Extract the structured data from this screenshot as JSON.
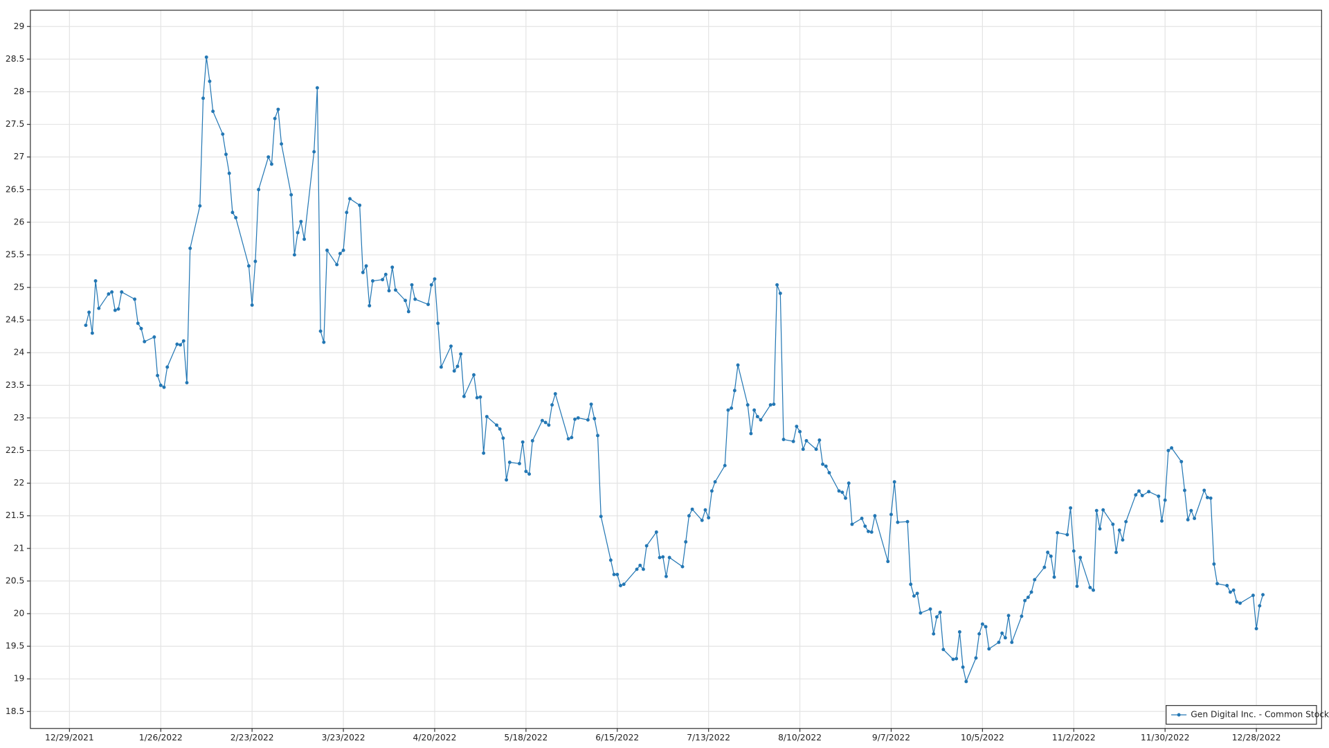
{
  "chart_data": {
    "type": "line",
    "x": [
      "2022-01-03",
      "2022-01-04",
      "2022-01-05",
      "2022-01-06",
      "2022-01-07",
      "2022-01-10",
      "2022-01-11",
      "2022-01-12",
      "2022-01-13",
      "2022-01-14",
      "2022-01-18",
      "2022-01-19",
      "2022-01-20",
      "2022-01-21",
      "2022-01-24",
      "2022-01-25",
      "2022-01-26",
      "2022-01-27",
      "2022-01-28",
      "2022-01-31",
      "2022-02-01",
      "2022-02-02",
      "2022-02-03",
      "2022-02-04",
      "2022-02-07",
      "2022-02-08",
      "2022-02-09",
      "2022-02-10",
      "2022-02-11",
      "2022-02-14",
      "2022-02-15",
      "2022-02-16",
      "2022-02-17",
      "2022-02-18",
      "2022-02-22",
      "2022-02-23",
      "2022-02-24",
      "2022-02-25",
      "2022-02-28",
      "2022-03-01",
      "2022-03-02",
      "2022-03-03",
      "2022-03-04",
      "2022-03-07",
      "2022-03-08",
      "2022-03-09",
      "2022-03-10",
      "2022-03-11",
      "2022-03-14",
      "2022-03-15",
      "2022-03-16",
      "2022-03-17",
      "2022-03-18",
      "2022-03-21",
      "2022-03-22",
      "2022-03-23",
      "2022-03-24",
      "2022-03-25",
      "2022-03-28",
      "2022-03-29",
      "2022-03-30",
      "2022-03-31",
      "2022-04-01",
      "2022-04-04",
      "2022-04-05",
      "2022-04-06",
      "2022-04-07",
      "2022-04-08",
      "2022-04-11",
      "2022-04-12",
      "2022-04-13",
      "2022-04-14",
      "2022-04-18",
      "2022-04-19",
      "2022-04-20",
      "2022-04-21",
      "2022-04-22",
      "2022-04-25",
      "2022-04-26",
      "2022-04-27",
      "2022-04-28",
      "2022-04-29",
      "2022-05-02",
      "2022-05-03",
      "2022-05-04",
      "2022-05-05",
      "2022-05-06",
      "2022-05-09",
      "2022-05-10",
      "2022-05-11",
      "2022-05-12",
      "2022-05-13",
      "2022-05-16",
      "2022-05-17",
      "2022-05-18",
      "2022-05-19",
      "2022-05-20",
      "2022-05-23",
      "2022-05-24",
      "2022-05-25",
      "2022-05-26",
      "2022-05-27",
      "2022-05-31",
      "2022-06-01",
      "2022-06-02",
      "2022-06-03",
      "2022-06-06",
      "2022-06-07",
      "2022-06-08",
      "2022-06-09",
      "2022-06-10",
      "2022-06-13",
      "2022-06-14",
      "2022-06-15",
      "2022-06-16",
      "2022-06-17",
      "2022-06-21",
      "2022-06-22",
      "2022-06-23",
      "2022-06-24",
      "2022-06-27",
      "2022-06-28",
      "2022-06-29",
      "2022-06-30",
      "2022-07-01",
      "2022-07-05",
      "2022-07-06",
      "2022-07-07",
      "2022-07-08",
      "2022-07-11",
      "2022-07-12",
      "2022-07-13",
      "2022-07-14",
      "2022-07-15",
      "2022-07-18",
      "2022-07-19",
      "2022-07-20",
      "2022-07-21",
      "2022-07-22",
      "2022-07-25",
      "2022-07-26",
      "2022-07-27",
      "2022-07-28",
      "2022-07-29",
      "2022-08-01",
      "2022-08-02",
      "2022-08-03",
      "2022-08-04",
      "2022-08-05",
      "2022-08-08",
      "2022-08-09",
      "2022-08-10",
      "2022-08-11",
      "2022-08-12",
      "2022-08-15",
      "2022-08-16",
      "2022-08-17",
      "2022-08-18",
      "2022-08-19",
      "2022-08-22",
      "2022-08-23",
      "2022-08-24",
      "2022-08-25",
      "2022-08-26",
      "2022-08-29",
      "2022-08-30",
      "2022-08-31",
      "2022-09-01",
      "2022-09-02",
      "2022-09-06",
      "2022-09-07",
      "2022-09-08",
      "2022-09-09",
      "2022-09-12",
      "2022-09-13",
      "2022-09-14",
      "2022-09-15",
      "2022-09-16",
      "2022-09-19",
      "2022-09-20",
      "2022-09-21",
      "2022-09-22",
      "2022-09-23",
      "2022-09-26",
      "2022-09-27",
      "2022-09-28",
      "2022-09-29",
      "2022-09-30",
      "2022-10-03",
      "2022-10-04",
      "2022-10-05",
      "2022-10-06",
      "2022-10-07",
      "2022-10-10",
      "2022-10-11",
      "2022-10-12",
      "2022-10-13",
      "2022-10-14",
      "2022-10-17",
      "2022-10-18",
      "2022-10-19",
      "2022-10-20",
      "2022-10-21",
      "2022-10-24",
      "2022-10-25",
      "2022-10-26",
      "2022-10-27",
      "2022-10-28",
      "2022-10-31",
      "2022-11-01",
      "2022-11-02",
      "2022-11-03",
      "2022-11-04",
      "2022-11-07",
      "2022-11-08",
      "2022-11-09",
      "2022-11-10",
      "2022-11-11",
      "2022-11-14",
      "2022-11-15",
      "2022-11-16",
      "2022-11-17",
      "2022-11-18",
      "2022-11-21",
      "2022-11-22",
      "2022-11-23",
      "2022-11-25",
      "2022-11-28",
      "2022-11-29",
      "2022-11-30",
      "2022-12-01",
      "2022-12-02",
      "2022-12-05",
      "2022-12-06",
      "2022-12-07",
      "2022-12-08",
      "2022-12-09",
      "2022-12-12",
      "2022-12-13",
      "2022-12-14",
      "2022-12-15",
      "2022-12-16",
      "2022-12-19",
      "2022-12-20",
      "2022-12-21",
      "2022-12-22",
      "2022-12-23",
      "2022-12-27",
      "2022-12-28",
      "2022-12-29",
      "2022-12-30"
    ],
    "series": [
      {
        "name": "Gen Digital Inc. - Common Stock",
        "color": "#2377b4",
        "values": [
          24.42,
          24.62,
          24.3,
          25.1,
          24.68,
          24.9,
          24.93,
          24.65,
          24.67,
          24.93,
          24.82,
          24.45,
          24.37,
          24.17,
          24.24,
          23.65,
          23.5,
          23.47,
          23.78,
          24.13,
          24.12,
          24.18,
          23.54,
          25.6,
          26.25,
          27.9,
          28.53,
          28.16,
          27.7,
          27.35,
          27.04,
          26.75,
          26.15,
          26.07,
          25.33,
          24.73,
          25.4,
          26.5,
          27.0,
          26.89,
          27.59,
          27.73,
          27.2,
          26.42,
          25.5,
          25.84,
          26.01,
          25.74,
          27.08,
          28.06,
          24.33,
          24.16,
          25.57,
          25.35,
          25.52,
          25.57,
          26.15,
          26.36,
          26.26,
          25.23,
          25.33,
          24.72,
          25.1,
          25.12,
          25.2,
          24.95,
          25.31,
          24.96,
          24.8,
          24.63,
          25.04,
          24.82,
          24.74,
          25.04,
          25.13,
          24.45,
          23.78,
          24.1,
          23.72,
          23.79,
          23.98,
          23.33,
          23.66,
          23.31,
          23.32,
          22.46,
          23.02,
          22.89,
          22.83,
          22.69,
          22.05,
          22.32,
          22.3,
          22.63,
          22.18,
          22.14,
          22.65,
          22.96,
          22.93,
          22.89,
          23.2,
          23.37,
          22.68,
          22.7,
          22.98,
          23.0,
          22.97,
          23.21,
          22.99,
          22.73,
          21.49,
          20.82,
          20.6,
          20.6,
          20.43,
          20.45,
          20.68,
          20.74,
          20.68,
          21.04,
          21.25,
          20.86,
          20.87,
          20.57,
          20.86,
          20.72,
          21.1,
          21.5,
          21.6,
          21.43,
          21.59,
          21.47,
          21.88,
          22.02,
          22.27,
          23.12,
          23.15,
          23.42,
          23.81,
          23.2,
          22.76,
          23.12,
          23.02,
          22.97,
          23.2,
          23.21,
          25.04,
          24.91,
          22.67,
          22.64,
          22.87,
          22.79,
          22.52,
          22.65,
          22.52,
          22.66,
          22.29,
          22.26,
          22.16,
          21.88,
          21.86,
          21.77,
          22.0,
          21.37,
          21.46,
          21.34,
          21.26,
          21.25,
          21.5,
          20.8,
          21.52,
          22.02,
          21.4,
          21.41,
          20.45,
          20.27,
          20.31,
          20.01,
          20.07,
          19.69,
          19.95,
          20.02,
          19.45,
          19.3,
          19.31,
          19.72,
          19.18,
          18.96,
          19.32,
          19.69,
          19.84,
          19.8,
          19.46,
          19.56,
          19.7,
          19.63,
          19.97,
          19.56,
          19.96,
          20.2,
          20.25,
          20.33,
          20.52,
          20.71,
          20.94,
          20.88,
          20.56,
          21.24,
          21.21,
          21.62,
          20.96,
          20.42,
          20.86,
          20.4,
          20.36,
          21.58,
          21.3,
          21.59,
          21.37,
          20.94,
          21.28,
          21.13,
          21.41,
          21.82,
          21.88,
          21.81,
          21.87,
          21.8,
          21.42,
          21.74,
          22.5,
          22.54,
          22.33,
          21.89,
          21.44,
          21.58,
          21.46,
          21.89,
          21.78,
          21.77,
          20.76,
          20.46,
          20.43,
          20.33,
          20.36,
          20.18,
          20.16,
          20.28,
          19.77,
          20.12,
          20.29
        ]
      }
    ],
    "xlim": [
      "2021-12-17",
      "2023-01-17"
    ],
    "xticks": [
      {
        "value": "2021-12-29",
        "label": "12/29/2021"
      },
      {
        "value": "2022-01-26",
        "label": "1/26/2022"
      },
      {
        "value": "2022-02-23",
        "label": "2/23/2022"
      },
      {
        "value": "2022-03-23",
        "label": "3/23/2022"
      },
      {
        "value": "2022-04-20",
        "label": "4/20/2022"
      },
      {
        "value": "2022-05-18",
        "label": "5/18/2022"
      },
      {
        "value": "2022-06-15",
        "label": "6/15/2022"
      },
      {
        "value": "2022-07-13",
        "label": "7/13/2022"
      },
      {
        "value": "2022-08-10",
        "label": "8/10/2022"
      },
      {
        "value": "2022-09-07",
        "label": "9/7/2022"
      },
      {
        "value": "2022-10-05",
        "label": "10/5/2022"
      },
      {
        "value": "2022-11-02",
        "label": "11/2/2022"
      },
      {
        "value": "2022-11-30",
        "label": "11/30/2022"
      },
      {
        "value": "2022-12-28",
        "label": "12/28/2022"
      }
    ],
    "ylim": [
      18.24,
      29.25
    ],
    "yticks": [
      18.5,
      19,
      19.5,
      20,
      20.5,
      21,
      21.5,
      22,
      22.5,
      23,
      23.5,
      24,
      24.5,
      25,
      25.5,
      26,
      26.5,
      27,
      27.5,
      28,
      28.5,
      29
    ],
    "grid": true,
    "legend": "lower right"
  }
}
